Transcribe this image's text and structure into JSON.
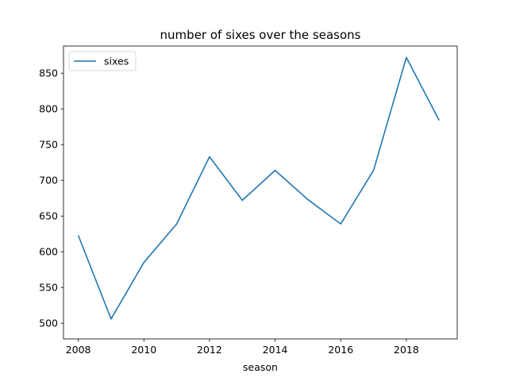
{
  "chart_data": {
    "type": "line",
    "title": "number of sixes over the seasons",
    "xlabel": "season",
    "ylabel": "",
    "x": [
      2008,
      2009,
      2010,
      2011,
      2012,
      2013,
      2014,
      2015,
      2016,
      2017,
      2018,
      2019
    ],
    "series": [
      {
        "name": "sixes",
        "color": "#1f77b4",
        "values": [
          623,
          506,
          585,
          639,
          733,
          672,
          714,
          673,
          639,
          714,
          872,
          784
        ]
      }
    ],
    "xlim": [
      2007.55,
      2019.55
    ],
    "ylim": [
      478,
      888
    ],
    "xticks": [
      2008,
      2010,
      2012,
      2014,
      2016,
      2018
    ],
    "yticks": [
      500,
      550,
      600,
      650,
      700,
      750,
      800,
      850
    ],
    "grid": false,
    "legend": "top-left"
  }
}
